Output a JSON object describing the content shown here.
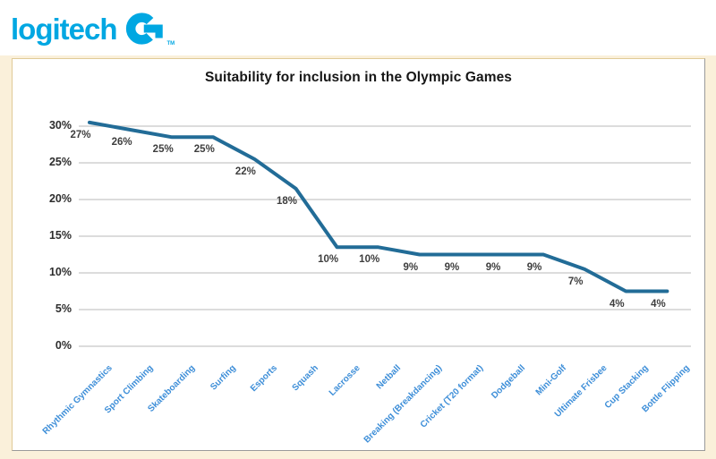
{
  "logo": {
    "text": "logitech",
    "tm": "TM",
    "color": "#00a7e2"
  },
  "chart_data": {
    "type": "line",
    "title": "Suitability for inclusion in the Olympic Games",
    "categories": [
      "Rhythmic Gymnastics",
      "Sport Climbing",
      "Skateboarding",
      "Surfing",
      "Esports",
      "Squash",
      "Lacrosse",
      "Netball",
      "Breaking (Breakdancing)",
      "Cricket (T20 format)",
      "Dodgeball",
      "Mini-Golf",
      "Ultimate Frisbee",
      "Cup Stacking",
      "Bottle Flipping"
    ],
    "values": [
      27,
      26,
      25,
      25,
      22,
      18,
      10,
      10,
      9,
      9,
      9,
      9,
      7,
      4,
      4
    ],
    "data_labels": [
      "27%",
      "26%",
      "25%",
      "25%",
      "22%",
      "18%",
      "10%",
      "10%",
      "9%",
      "9%",
      "9%",
      "9%",
      "7%",
      "4%",
      "4%"
    ],
    "y_ticks": [
      "0%",
      "5%",
      "10%",
      "15%",
      "20%",
      "25%",
      "30%"
    ],
    "ylim": [
      0,
      30
    ],
    "grid": "horizontal",
    "legend": "none",
    "render_offset_pct": 3.5,
    "colors": {
      "line": "#226c97",
      "data_label": "#3e3e3e",
      "y_tick_label": "#2d2d2d",
      "x_label": "#3d8ed8",
      "gridline": "#dcdcdc",
      "title": "#161616",
      "panel_bg": "#faf0da",
      "card_border": "#e0ca97",
      "card_shadow": "#9a9a9a"
    }
  }
}
